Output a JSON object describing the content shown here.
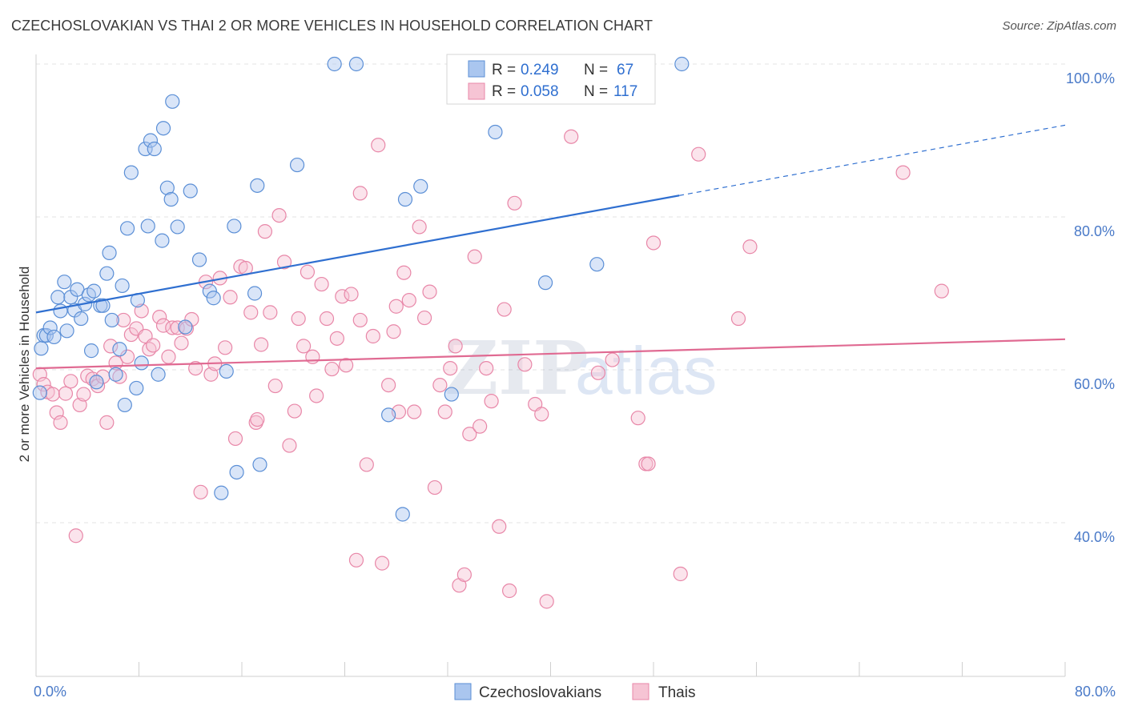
{
  "title": "CZECHOSLOVAKIAN VS THAI 2 OR MORE VEHICLES IN HOUSEHOLD CORRELATION CHART",
  "source": "Source: ZipAtlas.com",
  "watermark": {
    "zip": "ZIP",
    "atlas": "atlas"
  },
  "colors": {
    "blue": "#5b8fd6",
    "pink": "#e887a8",
    "blue_fill": "#aac6ef",
    "pink_fill": "#f6c4d4",
    "blue_line": "#2f6fd0",
    "pink_line": "#e06a92",
    "tick_text": "#4a7ac8"
  },
  "stats_legend": [
    {
      "r_label": "R =",
      "r_value": "0.249",
      "n_label": "N =",
      "n_value": "67"
    },
    {
      "r_label": "R =",
      "r_value": "0.058",
      "n_label": "N =",
      "n_value": "117"
    }
  ],
  "chart_data": {
    "type": "scatter",
    "title": "CZECHOSLOVAKIAN VS THAI 2 OR MORE VEHICLES IN HOUSEHOLD CORRELATION CHART",
    "xlabel": "",
    "ylabel": "2 or more Vehicles in Household",
    "xlim": [
      0,
      80
    ],
    "ylim": [
      20,
      102
    ],
    "x_tick_labels": [
      "0.0%",
      "80.0%"
    ],
    "y_tick_labels": [
      "40.0%",
      "60.0%",
      "80.0%",
      "100.0%"
    ],
    "y_ticks": [
      40,
      60,
      80,
      100
    ],
    "grid": true,
    "legend_position": "bottom",
    "series": [
      {
        "name": "Czechoslovakians",
        "color": "#5b8fd6",
        "trend": {
          "x": [
            0,
            50
          ],
          "y": [
            67.5,
            82.8
          ],
          "dashed_to": [
            80,
            92
          ]
        },
        "points": [
          [
            0.3,
            57.0
          ],
          [
            0.4,
            62.8
          ],
          [
            0.6,
            64.5
          ],
          [
            0.8,
            64.5
          ],
          [
            1.1,
            65.5
          ],
          [
            1.4,
            64.3
          ],
          [
            1.7,
            69.5
          ],
          [
            1.9,
            67.7
          ],
          [
            2.2,
            71.5
          ],
          [
            2.4,
            65.1
          ],
          [
            2.7,
            69.5
          ],
          [
            3.0,
            67.8
          ],
          [
            3.2,
            70.5
          ],
          [
            3.5,
            66.7
          ],
          [
            3.8,
            68.6
          ],
          [
            4.1,
            69.8
          ],
          [
            4.3,
            62.5
          ],
          [
            4.5,
            70.3
          ],
          [
            4.7,
            58.4
          ],
          [
            5.0,
            68.4
          ],
          [
            5.2,
            68.4
          ],
          [
            5.5,
            72.6
          ],
          [
            5.7,
            75.3
          ],
          [
            5.9,
            66.5
          ],
          [
            6.2,
            59.4
          ],
          [
            6.5,
            62.7
          ],
          [
            6.7,
            71.0
          ],
          [
            6.9,
            55.4
          ],
          [
            7.1,
            78.5
          ],
          [
            7.4,
            85.8
          ],
          [
            7.8,
            57.6
          ],
          [
            7.9,
            69.1
          ],
          [
            8.2,
            60.9
          ],
          [
            8.5,
            88.9
          ],
          [
            8.7,
            78.8
          ],
          [
            8.9,
            90.0
          ],
          [
            9.2,
            88.9
          ],
          [
            9.5,
            59.4
          ],
          [
            9.8,
            76.9
          ],
          [
            9.9,
            91.6
          ],
          [
            10.2,
            83.8
          ],
          [
            10.5,
            82.3
          ],
          [
            10.6,
            95.1
          ],
          [
            11.0,
            78.7
          ],
          [
            11.6,
            65.6
          ],
          [
            12.0,
            83.4
          ],
          [
            12.7,
            74.4
          ],
          [
            13.5,
            70.3
          ],
          [
            13.8,
            69.4
          ],
          [
            14.8,
            59.8
          ],
          [
            15.4,
            78.8
          ],
          [
            15.6,
            46.6
          ],
          [
            17.0,
            70.0
          ],
          [
            17.2,
            84.1
          ],
          [
            17.4,
            47.6
          ],
          [
            14.4,
            43.9
          ],
          [
            20.3,
            86.8
          ],
          [
            23.2,
            100.0
          ],
          [
            24.9,
            100.0
          ],
          [
            27.4,
            54.1
          ],
          [
            28.5,
            41.1
          ],
          [
            28.7,
            82.3
          ],
          [
            29.9,
            84.0
          ],
          [
            32.3,
            56.8
          ],
          [
            35.7,
            91.1
          ],
          [
            39.6,
            71.4
          ],
          [
            43.6,
            73.8
          ],
          [
            50.2,
            100.0
          ]
        ]
      },
      {
        "name": "Thais",
        "color": "#e887a8",
        "trend": {
          "x": [
            0,
            80
          ],
          "y": [
            60.2,
            64.0
          ]
        },
        "points": [
          [
            0.3,
            59.4
          ],
          [
            0.6,
            58.1
          ],
          [
            0.9,
            57.1
          ],
          [
            1.3,
            56.8
          ],
          [
            1.6,
            54.4
          ],
          [
            1.9,
            53.1
          ],
          [
            2.3,
            56.9
          ],
          [
            2.7,
            58.5
          ],
          [
            3.1,
            38.3
          ],
          [
            3.4,
            55.4
          ],
          [
            3.7,
            56.8
          ],
          [
            4.0,
            59.2
          ],
          [
            4.4,
            58.8
          ],
          [
            4.8,
            57.9
          ],
          [
            5.2,
            59.1
          ],
          [
            5.5,
            53.1
          ],
          [
            5.8,
            63.1
          ],
          [
            6.2,
            60.9
          ],
          [
            6.5,
            59.1
          ],
          [
            6.8,
            66.5
          ],
          [
            7.1,
            61.7
          ],
          [
            7.4,
            64.6
          ],
          [
            7.8,
            65.4
          ],
          [
            8.2,
            67.7
          ],
          [
            8.5,
            64.4
          ],
          [
            8.8,
            62.7
          ],
          [
            9.1,
            63.2
          ],
          [
            9.6,
            66.9
          ],
          [
            9.9,
            65.8
          ],
          [
            10.3,
            61.7
          ],
          [
            10.6,
            65.5
          ],
          [
            11.0,
            65.5
          ],
          [
            11.3,
            63.5
          ],
          [
            11.7,
            65.4
          ],
          [
            12.1,
            66.6
          ],
          [
            12.4,
            60.2
          ],
          [
            12.8,
            44.0
          ],
          [
            13.2,
            71.5
          ],
          [
            13.6,
            59.4
          ],
          [
            13.9,
            60.8
          ],
          [
            14.3,
            72.0
          ],
          [
            14.7,
            62.9
          ],
          [
            15.1,
            69.5
          ],
          [
            15.5,
            51.0
          ],
          [
            15.9,
            73.5
          ],
          [
            16.3,
            73.3
          ],
          [
            16.7,
            67.5
          ],
          [
            17.1,
            53.1
          ],
          [
            17.5,
            63.3
          ],
          [
            17.8,
            78.1
          ],
          [
            18.2,
            67.5
          ],
          [
            18.6,
            57.9
          ],
          [
            18.9,
            80.2
          ],
          [
            19.3,
            74.1
          ],
          [
            19.7,
            50.1
          ],
          [
            20.1,
            54.6
          ],
          [
            20.4,
            66.7
          ],
          [
            20.8,
            63.1
          ],
          [
            21.1,
            72.8
          ],
          [
            21.5,
            61.7
          ],
          [
            21.8,
            56.6
          ],
          [
            22.2,
            71.2
          ],
          [
            22.6,
            66.7
          ],
          [
            23.0,
            60.1
          ],
          [
            23.4,
            64.1
          ],
          [
            23.8,
            69.6
          ],
          [
            24.1,
            60.6
          ],
          [
            24.5,
            69.9
          ],
          [
            24.9,
            35.1
          ],
          [
            25.2,
            66.5
          ],
          [
            25.7,
            47.6
          ],
          [
            26.2,
            64.4
          ],
          [
            26.6,
            89.4
          ],
          [
            26.9,
            34.7
          ],
          [
            27.4,
            58.0
          ],
          [
            27.8,
            65.0
          ],
          [
            28.2,
            54.5
          ],
          [
            28.6,
            72.7
          ],
          [
            29.0,
            69.1
          ],
          [
            29.4,
            54.5
          ],
          [
            29.8,
            78.7
          ],
          [
            30.2,
            66.8
          ],
          [
            30.6,
            70.2
          ],
          [
            31.0,
            44.6
          ],
          [
            31.4,
            58.0
          ],
          [
            31.8,
            54.5
          ],
          [
            32.2,
            60.2
          ],
          [
            32.6,
            63.1
          ],
          [
            32.9,
            31.8
          ],
          [
            33.3,
            33.2
          ],
          [
            33.7,
            51.6
          ],
          [
            34.1,
            74.8
          ],
          [
            34.5,
            52.6
          ],
          [
            35.0,
            60.2
          ],
          [
            35.4,
            55.9
          ],
          [
            36.0,
            39.5
          ],
          [
            36.4,
            67.9
          ],
          [
            36.8,
            31.1
          ],
          [
            37.2,
            81.8
          ],
          [
            38.0,
            60.7
          ],
          [
            38.8,
            55.5
          ],
          [
            39.3,
            54.2
          ],
          [
            39.7,
            29.7
          ],
          [
            41.6,
            90.5
          ],
          [
            43.7,
            59.6
          ],
          [
            44.8,
            61.3
          ],
          [
            46.8,
            53.7
          ],
          [
            47.4,
            47.7
          ],
          [
            47.6,
            47.7
          ],
          [
            48.0,
            76.6
          ],
          [
            50.1,
            33.3
          ],
          [
            51.5,
            88.2
          ],
          [
            54.6,
            66.7
          ],
          [
            55.5,
            76.1
          ],
          [
            67.4,
            85.8
          ],
          [
            70.4,
            70.3
          ],
          [
            25.2,
            83.1
          ],
          [
            28.0,
            68.3
          ],
          [
            17.2,
            53.5
          ]
        ]
      }
    ]
  },
  "legend": {
    "items": [
      {
        "label": "Czechoslovakians"
      },
      {
        "label": "Thais"
      }
    ]
  }
}
